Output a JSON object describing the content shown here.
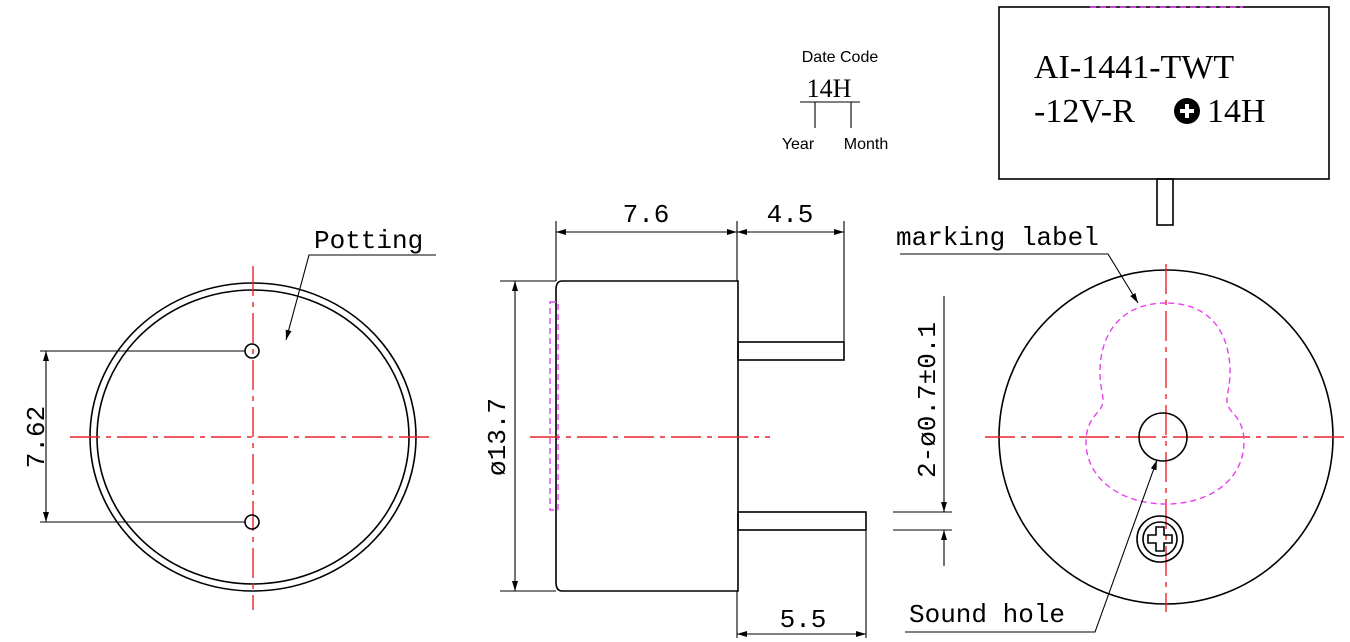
{
  "datecode": {
    "title": "Date Code",
    "code": "14H",
    "year": "Year",
    "month": "Month"
  },
  "marking": {
    "line1": "AI-1441-TWT",
    "line2": "-12V-R",
    "line2_suffix": "14H"
  },
  "labels": {
    "potting": "Potting",
    "marking_label": "marking label",
    "sound_hole": "Sound hole"
  },
  "dimensions": {
    "d1": "7.6",
    "d2": "4.5",
    "d3": "5.5",
    "d4": "7.62",
    "d5": "ø13.7",
    "d6": "2-ø0.7±0.1"
  }
}
